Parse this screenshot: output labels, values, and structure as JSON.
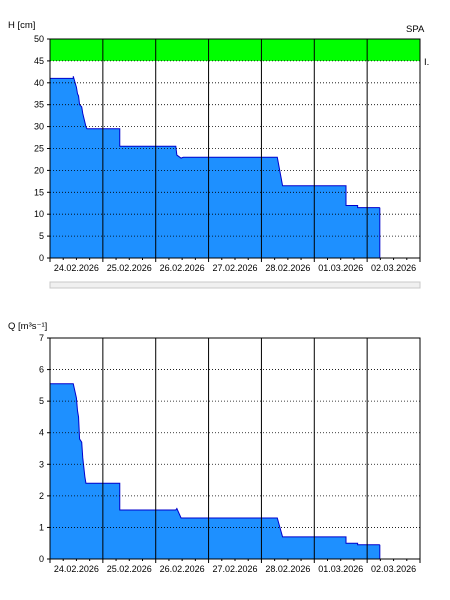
{
  "colors": {
    "fill": "#1e90ff",
    "stroke": "#0000cc",
    "band": "#00ff00",
    "grid_h": "#000000",
    "grid_v": "#000000",
    "scrollbar_bg": "#f0f0f0",
    "scrollbar_line": "#c8c8c8"
  },
  "chart_data": [
    {
      "type": "area",
      "ylabel": "H [cm]",
      "right_label": "SPA",
      "band_label": "I.",
      "band_range": [
        45,
        50
      ],
      "ylim": [
        0,
        50
      ],
      "yticks": [
        0,
        5,
        10,
        15,
        20,
        25,
        30,
        35,
        40,
        45,
        50
      ],
      "xlim": [
        0,
        7
      ],
      "x_tick_labels": [
        "24.02.2026",
        "25.02.2026",
        "26.02.2026",
        "27.02.2026",
        "28.02.2026",
        "01.03.2026",
        "02.03.2026"
      ],
      "grid": "dotted horizontal, solid vertical day lines",
      "series": [
        {
          "x": [
            0,
            0.44,
            0.44,
            0.5,
            0.52,
            0.54,
            0.56,
            0.6,
            0.62,
            0.64,
            0.66,
            0.68,
            0.7,
            1.32,
            1.32,
            2.38,
            2.4,
            2.48,
            2.52,
            3.3,
            4.3,
            4.4,
            5.3,
            5.6,
            5.6,
            5.82,
            5.82,
            6.24
          ],
          "y": [
            41,
            41,
            41.5,
            39,
            37.5,
            37,
            35,
            34.5,
            33,
            32,
            31,
            30,
            29.5,
            29.5,
            25.5,
            25.5,
            23.5,
            22.8,
            23,
            23,
            23,
            16.5,
            16.5,
            16.5,
            12,
            12,
            11.5,
            11.5
          ]
        }
      ]
    },
    {
      "type": "area",
      "ylabel": "Q [m³s⁻¹]",
      "ylim": [
        0,
        7
      ],
      "yticks": [
        0,
        1,
        2,
        3,
        4,
        5,
        6,
        7
      ],
      "xlim": [
        0,
        7
      ],
      "x_tick_labels": [
        "24.02.2026",
        "25.02.2026",
        "26.02.2026",
        "27.02.2026",
        "28.02.2026",
        "01.03.2026",
        "02.03.2026"
      ],
      "grid": "dotted horizontal, solid vertical day lines",
      "series": [
        {
          "x": [
            0,
            0.44,
            0.44,
            0.5,
            0.52,
            0.54,
            0.56,
            0.6,
            0.62,
            0.64,
            0.66,
            0.68,
            0.7,
            1.32,
            1.32,
            2.38,
            2.4,
            2.48,
            2.52,
            3.3,
            4.3,
            4.4,
            5.3,
            5.6,
            5.6,
            5.82,
            5.82,
            6.24
          ],
          "y": [
            5.55,
            5.55,
            5.55,
            5.1,
            4.7,
            4.5,
            3.8,
            3.7,
            3.2,
            2.9,
            2.6,
            2.4,
            2.4,
            2.4,
            1.55,
            1.55,
            1.6,
            1.3,
            1.3,
            1.3,
            1.3,
            0.7,
            0.7,
            0.7,
            0.5,
            0.5,
            0.45,
            0.45
          ]
        }
      ]
    }
  ]
}
